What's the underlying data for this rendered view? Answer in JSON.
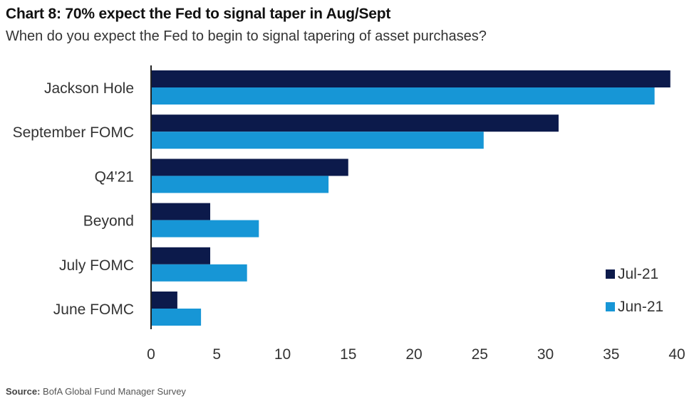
{
  "header": {
    "title": "Chart 8: 70% expect the Fed to signal taper in Aug/Sept",
    "subtitle": "When do you expect the Fed to begin to signal tapering of asset purchases?"
  },
  "footer": {
    "source_label": "Source:",
    "source_text": "BofA Global Fund Manager Survey"
  },
  "colors": {
    "jul": "#0c1a4b",
    "jun": "#1796d6"
  },
  "chart_data": {
    "type": "bar",
    "orientation": "horizontal",
    "title": "Chart 8: 70% expect the Fed to signal taper in Aug/Sept",
    "subtitle": "When do you expect the Fed to begin to signal tapering of asset purchases?",
    "categories": [
      "Jackson Hole",
      "September FOMC",
      "Q4'21",
      "Beyond",
      "July FOMC",
      "June FOMC"
    ],
    "series": [
      {
        "name": "Jul-21",
        "values": [
          39.5,
          31,
          15,
          4.5,
          4.5,
          2
        ]
      },
      {
        "name": "Jun-21",
        "values": [
          38.3,
          25.3,
          13.5,
          8.2,
          7.3,
          3.8
        ]
      }
    ],
    "xlim": [
      0,
      40
    ],
    "xticks": [
      0,
      5,
      10,
      15,
      20,
      25,
      30,
      35,
      40
    ],
    "grid": false,
    "legend_position": "bottom-right"
  }
}
